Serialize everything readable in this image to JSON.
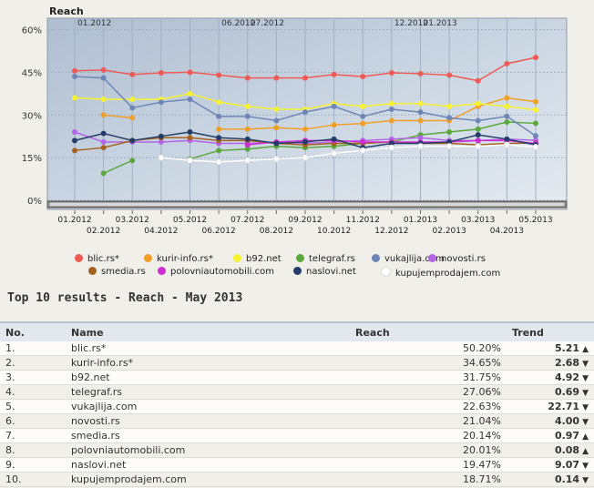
{
  "chart_data": {
    "type": "line",
    "title": "Reach",
    "yticks": [
      "0%",
      "15%",
      "30%",
      "45%",
      "60%"
    ],
    "ylim": [
      0,
      64
    ],
    "x": [
      "01.2012",
      "02.2012",
      "03.2012",
      "04.2012",
      "05.2012",
      "06.2012",
      "07.2012",
      "08.2012",
      "09.2012",
      "10.2012",
      "11.2012",
      "12.2012",
      "01.2013",
      "02.2013",
      "03.2013",
      "04.2013",
      "05.2013"
    ],
    "x_top_labels": [
      "01.2012",
      "06.2012",
      "07.2012",
      "12.2012",
      "01.2013"
    ],
    "grid": true,
    "legend_position": "bottom",
    "series": [
      {
        "name": "blic.rs*",
        "color": "#ee5a55",
        "values": [
          45.5,
          45.8,
          44.2,
          44.8,
          45,
          44,
          43,
          43,
          43,
          44.2,
          43.5,
          44.8,
          44.5,
          44,
          42,
          48,
          50.2
        ]
      },
      {
        "name": "kurir-info.rs*",
        "color": "#f0a02a",
        "values": [
          null,
          30,
          29,
          null,
          null,
          25,
          25,
          25.5,
          25,
          26.5,
          27,
          28,
          28,
          28,
          33,
          36,
          34.65
        ]
      },
      {
        "name": "b92.net",
        "color": "#f6f232",
        "values": [
          36,
          35.5,
          35.5,
          35.5,
          37.5,
          34.5,
          33,
          32,
          32,
          34,
          33,
          34,
          34,
          33,
          34,
          33,
          31.75
        ]
      },
      {
        "name": "telegraf.rs",
        "color": "#5aa83c",
        "values": [
          null,
          9.5,
          14,
          null,
          14.5,
          17.5,
          18,
          19,
          18.5,
          19,
          20,
          20.5,
          23,
          24,
          25,
          27.5,
          27.06
        ]
      },
      {
        "name": "vukajlija.com",
        "color": "#6e86b6",
        "values": [
          43.5,
          43,
          32.5,
          34.5,
          35.5,
          29.5,
          29.5,
          28,
          31,
          33,
          29.5,
          32,
          31,
          29,
          28,
          29.5,
          22.63
        ]
      },
      {
        "name": "novosti.rs",
        "color": "#b464e6",
        "values": [
          24,
          20.5,
          20.5,
          20.5,
          21,
          20,
          20,
          20.5,
          20,
          20.5,
          21,
          21.5,
          22,
          21,
          21,
          21.5,
          21.04
        ]
      },
      {
        "name": "smedia.rs",
        "color": "#a4621e",
        "values": [
          17.5,
          18.5,
          21,
          22,
          22,
          21,
          21,
          20,
          19.5,
          20,
          20,
          20.5,
          20,
          20,
          19.5,
          20,
          20.14
        ]
      },
      {
        "name": "polovniautomobili.com",
        "color": "#cc2ed2",
        "values": [
          null,
          null,
          null,
          null,
          null,
          null,
          19.5,
          20.5,
          21,
          21,
          20.5,
          20.5,
          20.5,
          20.5,
          21,
          21,
          20.01
        ]
      },
      {
        "name": "naslovi.net",
        "color": "#243c68",
        "values": [
          21,
          23.5,
          21,
          22.5,
          24,
          22,
          21.5,
          20,
          20.5,
          21.5,
          18.5,
          20,
          20,
          20.5,
          23,
          21.5,
          19.47
        ]
      },
      {
        "name": "kupujemprodajem.com",
        "color": "#ffffff",
        "values": [
          null,
          null,
          null,
          15,
          14,
          13.5,
          14,
          14.5,
          15,
          16.5,
          17.5,
          18.5,
          19,
          19,
          19,
          19.5,
          18.71
        ]
      }
    ]
  },
  "legend": [
    {
      "label": "blic.rs*",
      "color": "#ee5a55"
    },
    {
      "label": "kurir-info.rs*",
      "color": "#f0a02a"
    },
    {
      "label": "b92.net",
      "color": "#f6f232"
    },
    {
      "label": "telegraf.rs",
      "color": "#5aa83c"
    },
    {
      "label": "vukajlija.com",
      "color": "#6e86b6"
    },
    {
      "label": "novosti.rs",
      "color": "#b464e6"
    },
    {
      "label": "smedia.rs",
      "color": "#a4621e"
    },
    {
      "label": "polovniautomobili.com",
      "color": "#cc2ed2"
    },
    {
      "label": "naslovi.net",
      "color": "#243c68"
    },
    {
      "label": "kupujemprodajem.com",
      "color": "#ffffff"
    }
  ],
  "section_title": "Top 10 results  -  Reach  -  May 2013",
  "table": {
    "headers": {
      "no": "No.",
      "name": "Name",
      "reach": "Reach",
      "trend": "Trend"
    },
    "rows": [
      {
        "no": "1.",
        "name": "blic.rs*",
        "reach": "50.20%",
        "trend": "5.21",
        "dir": "up"
      },
      {
        "no": "2.",
        "name": "kurir-info.rs*",
        "reach": "34.65%",
        "trend": "2.68",
        "dir": "down"
      },
      {
        "no": "3.",
        "name": "b92.net",
        "reach": "31.75%",
        "trend": "4.92",
        "dir": "down"
      },
      {
        "no": "4.",
        "name": "telegraf.rs",
        "reach": "27.06%",
        "trend": "0.69",
        "dir": "down"
      },
      {
        "no": "5.",
        "name": "vukajlija.com",
        "reach": "22.63%",
        "trend": "22.71",
        "dir": "down"
      },
      {
        "no": "6.",
        "name": "novosti.rs",
        "reach": "21.04%",
        "trend": "4.00",
        "dir": "down"
      },
      {
        "no": "7.",
        "name": "smedia.rs",
        "reach": "20.14%",
        "trend": "0.97",
        "dir": "up"
      },
      {
        "no": "8.",
        "name": "polovniautomobili.com",
        "reach": "20.01%",
        "trend": "0.08",
        "dir": "up"
      },
      {
        "no": "9.",
        "name": "naslovi.net",
        "reach": "19.47%",
        "trend": "9.07",
        "dir": "down"
      },
      {
        "no": "10.",
        "name": "kupujemprodajem.com",
        "reach": "18.71%",
        "trend": "0.14",
        "dir": "down"
      }
    ]
  }
}
